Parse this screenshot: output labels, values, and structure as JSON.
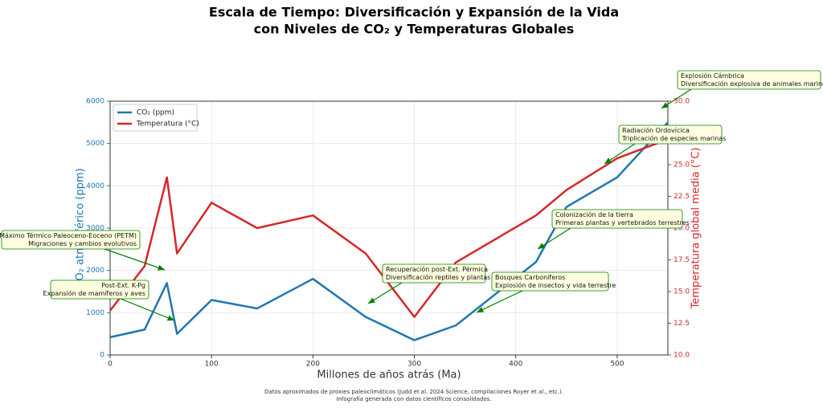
{
  "chart_data": {
    "type": "line",
    "title": [
      "Escala de Tiempo: Diversificación y Expansión de la Vida",
      "con Niveles de CO₂  y Temperaturas Globales"
    ],
    "xlabel": "Millones de años atrás (Ma)",
    "ylabel": "CO₂ atmosférico (ppm)",
    "y2label": "Temperatura global media (°C)",
    "x": [
      0,
      34,
      56,
      66,
      100,
      145,
      200,
      252,
      300,
      341,
      420,
      450,
      500,
      550
    ],
    "series": [
      {
        "name": "CO₂ (ppm)",
        "color": "#1f77b4",
        "values": [
          420,
          600,
          1700,
          500,
          1300,
          1100,
          1800,
          900,
          350,
          700,
          2200,
          3500,
          4200,
          5500
        ]
      },
      {
        "name": "Temperatura (°C)",
        "color": "#d62728",
        "axis": "y2",
        "values": [
          13.5,
          17,
          24,
          18,
          22,
          20,
          21,
          18,
          13,
          17.3,
          21,
          23,
          25.5,
          27
        ]
      }
    ],
    "xlim": [
      0,
      550
    ],
    "xticks": [
      0,
      100,
      200,
      300,
      400,
      500
    ],
    "ylim": [
      0,
      6000
    ],
    "yticks": [
      0,
      1000,
      2000,
      3000,
      4000,
      5000,
      6000
    ],
    "y2lim": [
      10,
      30
    ],
    "y2ticks": [
      {
        "value": 10,
        "label": "10.0"
      },
      12.5,
      {
        "value": 15,
        "label": "15.0"
      },
      17.5,
      {
        "value": 20,
        "label": "20.0"
      },
      22.5,
      {
        "value": 25,
        "label": "25.0"
      },
      27.5,
      {
        "value": 30,
        "label": "30.0"
      }
    ],
    "grid": true,
    "legend": "upper left",
    "annotations": [
      [
        "Explosión Cámbrica",
        "Diversificación explosiva de animales marinos"
      ],
      [
        "Radiación Ordovícica",
        "Triplicación de especies marinas"
      ],
      [
        "Colonización de la tierra",
        "Primeras plantas y vertebrados terrestres"
      ],
      [
        "Máximo Térmico Paleoceno-Eoceno (PETM)",
        "Migraciones y cambios evolutivos"
      ],
      [
        "Recuperación post-Ext. Pérmica",
        "Diversificación reptiles y plantas"
      ],
      [
        "Bosques Carboníferos",
        "Explosión de insectos y vida terrestre"
      ],
      [
        "Post-Ext. K-Pg",
        "Expansión de mamíferos y aves"
      ]
    ],
    "footer": [
      "Datos aproximados de proxies paleoclimáticos (Judd et al. 2024 Science, compilaciones Royer et al., etc.).",
      "Infografía generada con datos científicos consolidados."
    ]
  }
}
